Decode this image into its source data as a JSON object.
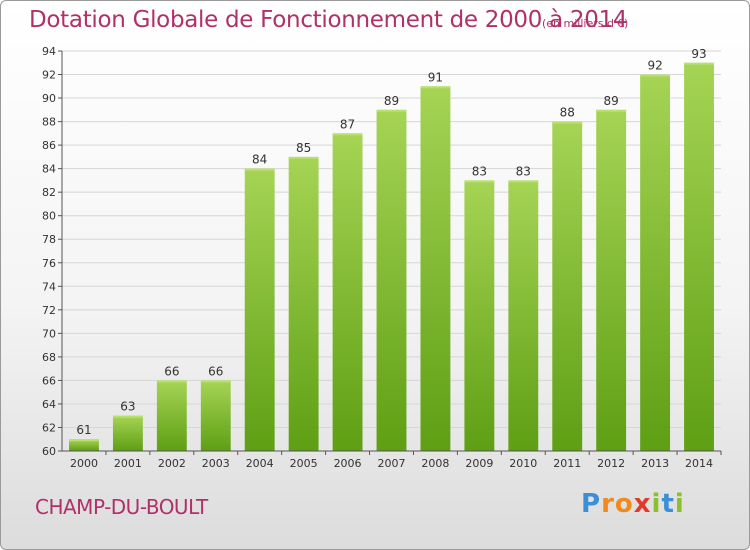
{
  "chart_title": "Dotation Globale de Fonctionnement de 2000 à 2014",
  "units_note": "(en milliers d'€)",
  "commune_name": "CHAMP-DU-BOULT",
  "logo": {
    "letters": [
      "P",
      "r",
      "o",
      "x",
      "i",
      "t",
      "i"
    ],
    "colors": [
      "#3a8fd6",
      "#f08a1c",
      "#f08a1c",
      "#e23a2a",
      "#8cbf2a",
      "#3a8fd6",
      "#8cbf2a"
    ]
  },
  "colors": {
    "title": "#b0306a",
    "bar_light": "#a6d455",
    "bar_dark": "#5e9f14",
    "grid": "#d6d6d6",
    "axis": "#555555"
  },
  "chart_data": {
    "type": "bar",
    "categories": [
      "2000",
      "2001",
      "2002",
      "2003",
      "2004",
      "2005",
      "2006",
      "2007",
      "2008",
      "2009",
      "2010",
      "2011",
      "2012",
      "2013",
      "2014"
    ],
    "values": [
      61,
      63,
      66,
      66,
      84,
      85,
      87,
      89,
      91,
      83,
      83,
      88,
      89,
      92,
      93
    ],
    "ylim": [
      60,
      94
    ],
    "yticks": [
      60,
      62,
      64,
      66,
      68,
      70,
      72,
      74,
      76,
      78,
      80,
      82,
      84,
      86,
      88,
      90,
      92,
      94
    ],
    "grid": true,
    "data_labels": true
  }
}
